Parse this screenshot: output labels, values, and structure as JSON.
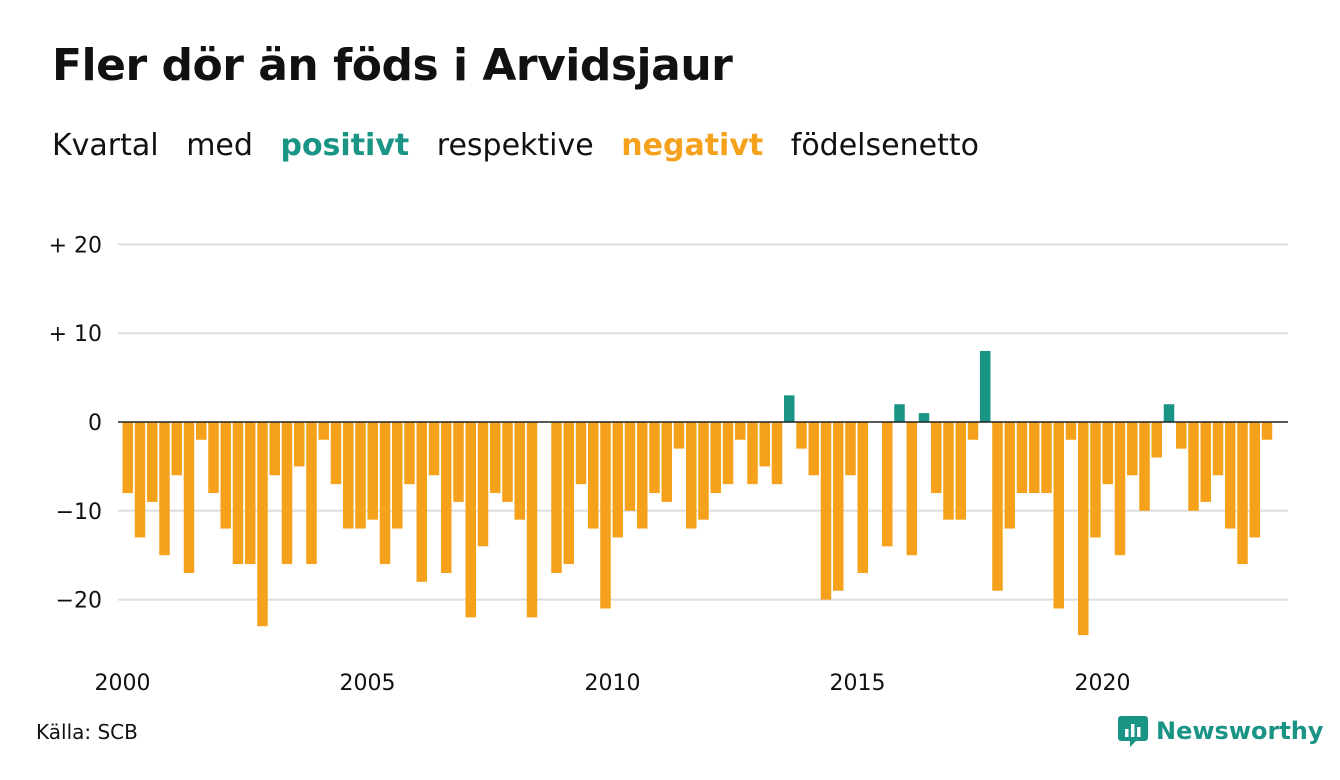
{
  "title": "Fler dör än föds i Arvidsjaur",
  "subtitle": {
    "w1": "Kvartal",
    "w2": "med",
    "positive": "positivt",
    "w3": "respektive",
    "negative": "negativt",
    "w4": "födelsenetto"
  },
  "source": "Källa: SCB",
  "brand": "Newsworthy",
  "colors": {
    "positive": "#1a9485",
    "negative": "#f6a11c",
    "grid": "#dddddd",
    "axis": "#222222"
  },
  "chart_data": {
    "type": "bar",
    "title": "Fler dör än föds i Arvidsjaur",
    "xlabel": "",
    "ylabel": "",
    "ylim": [
      -25,
      22
    ],
    "yticks": [
      {
        "value": 20,
        "label": "+ 20"
      },
      {
        "value": 10,
        "label": "+ 10"
      },
      {
        "value": 0,
        "label": "0"
      },
      {
        "value": -10,
        "label": "−10"
      },
      {
        "value": -20,
        "label": "−20"
      }
    ],
    "xticks": [
      "2000",
      "2005",
      "2010",
      "2015",
      "2020"
    ],
    "x_start_year": 2000,
    "periods_per_year": 4,
    "grid": true,
    "values": [
      -8,
      -13,
      -9,
      -15,
      -6,
      -17,
      -2,
      -8,
      -12,
      -16,
      -16,
      -23,
      -6,
      -16,
      -5,
      -16,
      -2,
      -7,
      -12,
      -12,
      -11,
      -16,
      -12,
      -7,
      -18,
      -6,
      -17,
      -9,
      -22,
      -14,
      -8,
      -9,
      -11,
      -22,
      0,
      -17,
      -16,
      -7,
      -12,
      -21,
      -13,
      -10,
      -12,
      -8,
      -9,
      -3,
      -12,
      -11,
      -8,
      -7,
      -2,
      -7,
      -5,
      -7,
      3,
      -3,
      -6,
      -20,
      -19,
      -6,
      -17,
      0,
      -14,
      2,
      -15,
      1,
      -8,
      -11,
      -11,
      -2,
      8,
      -19,
      -12,
      -8,
      -8,
      -8,
      -21,
      -2,
      -24,
      -13,
      -7,
      -15,
      -6,
      -10,
      -4,
      2,
      -3,
      -10,
      -9,
      -6,
      -12,
      -16,
      -13,
      -2
    ]
  }
}
